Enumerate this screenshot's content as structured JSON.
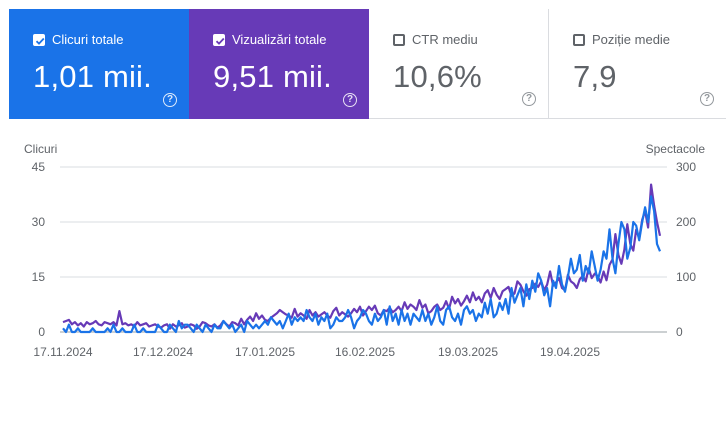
{
  "metric_cards": [
    {
      "label": "Clicuri totale",
      "value": "1,01 mii.",
      "checked": true,
      "color": "#1a73e8"
    },
    {
      "label": "Vizualizări totale",
      "value": "9,51 mii.",
      "checked": true,
      "color": "#673ab7"
    },
    {
      "label": "CTR mediu",
      "value": "10,6%",
      "checked": false,
      "color": "#ffffff"
    },
    {
      "label": "Poziție medie",
      "value": "7,9",
      "checked": false,
      "color": "#ffffff"
    }
  ],
  "help_icon": "?",
  "chart_data": {
    "type": "line",
    "ylabel_left": "Clicuri",
    "ylabel_right": "Spectacole",
    "y_left_ticks": [
      "0",
      "15",
      "30",
      "45"
    ],
    "y_right_ticks": [
      "0",
      "100",
      "200",
      "300"
    ],
    "ylim_left": [
      0,
      45
    ],
    "ylim_right": [
      0,
      300
    ],
    "x_tick_labels": [
      "17.11.2024",
      "17.12.2024",
      "17.01.2025",
      "16.02.2025",
      "19.03.2025",
      "19.04.2025"
    ],
    "x_start": "2024-11-17",
    "grid": true,
    "series": [
      {
        "name": "Clicuri totale",
        "axis": "left",
        "color": "#1a73e8",
        "values": [
          1,
          0,
          2,
          0,
          0,
          1,
          0,
          0,
          0,
          0,
          1,
          0,
          0,
          0,
          0,
          1,
          0,
          2,
          0,
          0,
          1,
          0,
          0,
          0,
          2,
          0,
          0,
          1,
          0,
          0,
          0,
          0,
          2,
          1,
          0,
          0,
          2,
          1,
          0,
          3,
          1,
          2,
          2,
          1,
          0,
          2,
          1,
          0,
          2,
          1,
          0,
          2,
          1,
          1,
          3,
          2,
          1,
          2,
          0,
          1,
          2,
          0,
          3,
          2,
          1,
          2,
          1,
          2,
          3,
          2,
          4,
          3,
          2,
          3,
          1,
          3,
          5,
          2,
          4,
          3,
          4,
          3,
          6,
          4,
          3,
          5,
          2,
          4,
          3,
          5,
          1,
          2,
          4,
          3,
          3,
          4,
          6,
          4,
          1,
          3,
          4,
          6,
          5,
          3,
          2,
          5,
          3,
          4,
          6,
          2,
          7,
          3,
          5,
          2,
          6,
          3,
          5,
          2,
          5,
          4,
          3,
          6,
          3,
          5,
          2,
          4,
          7,
          3,
          2,
          6,
          7,
          4,
          3,
          5,
          2,
          6,
          7,
          5,
          6,
          3,
          5,
          4,
          8,
          5,
          9,
          4,
          5,
          8,
          6,
          9,
          5,
          12,
          8,
          10,
          12,
          7,
          13,
          9,
          14,
          11,
          16,
          14,
          10,
          12,
          7,
          14,
          12,
          18,
          13,
          11,
          15,
          20,
          16,
          17,
          21,
          14,
          18,
          16,
          22,
          18,
          14,
          17,
          22,
          20,
          28,
          20,
          16,
          24,
          30,
          28,
          20,
          23,
          30,
          29,
          25,
          30,
          34,
          30,
          37,
          33,
          24,
          22
        ],
        "values_sparse": true
      },
      {
        "name": "Vizualizări totale",
        "axis": "right",
        "color": "#673ab7",
        "values": [
          18,
          20,
          22,
          14,
          18,
          12,
          16,
          10,
          18,
          14,
          16,
          20,
          14,
          12,
          18,
          16,
          14,
          18,
          12,
          38,
          14,
          16,
          12,
          14,
          10,
          18,
          12,
          14,
          16,
          10,
          12,
          14,
          10,
          8,
          12,
          14,
          6,
          14,
          10,
          12,
          16,
          8,
          10,
          14,
          12,
          6,
          10,
          18,
          16,
          12,
          10,
          14,
          8,
          12,
          20,
          14,
          10,
          18,
          16,
          12,
          24,
          14,
          22,
          28,
          20,
          34,
          24,
          30,
          22,
          20,
          26,
          30,
          34,
          40,
          36,
          32,
          30,
          26,
          42,
          28,
          34,
          30,
          24,
          40,
          30,
          36,
          28,
          32,
          36,
          30,
          26,
          38,
          44,
          30,
          36,
          32,
          28,
          34,
          42,
          36,
          46,
          30,
          38,
          46,
          40,
          48,
          34,
          30,
          40,
          38,
          44,
          36,
          40,
          46,
          38,
          54,
          42,
          50,
          46,
          40,
          58,
          44,
          50,
          34,
          38,
          46,
          50,
          40,
          44,
          56,
          42,
          64,
          52,
          60,
          48,
          56,
          66,
          54,
          72,
          58,
          64,
          54,
          70,
          76,
          62,
          80,
          68,
          60,
          74,
          78,
          82,
          66,
          70,
          92,
          86,
          74,
          66,
          78,
          80,
          88,
          82,
          92,
          76,
          86,
          110,
          84,
          90,
          98,
          80,
          76,
          104,
          92,
          88,
          80,
          96,
          102,
          92,
          116,
          98,
          106,
          102,
          90,
          110,
          94,
          122,
          132,
          178,
          140,
          124,
          150,
          196,
          160,
          148,
          186,
          170,
          204,
          220,
          190,
          268,
          230,
          200,
          175
        ],
        "values_sparse": true
      }
    ]
  }
}
